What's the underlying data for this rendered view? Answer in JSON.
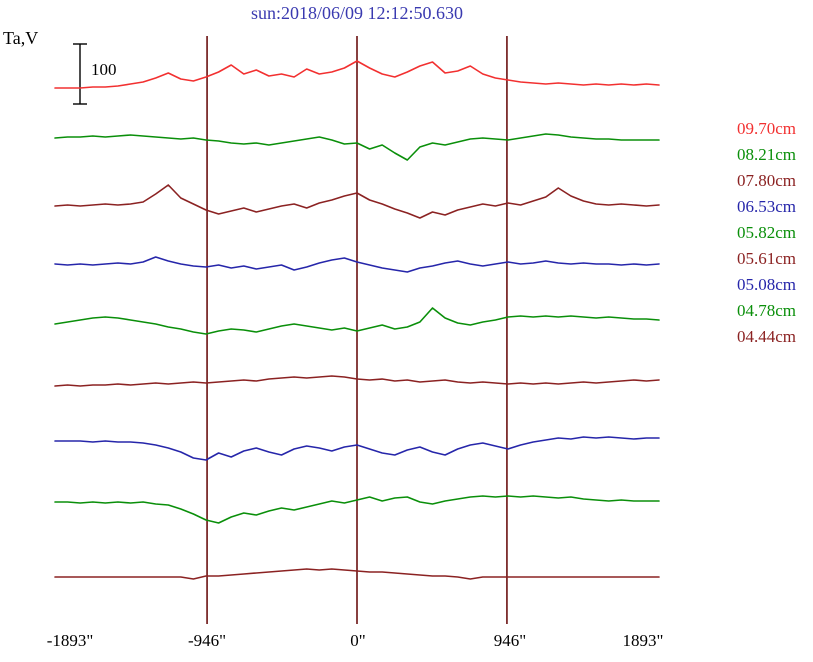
{
  "title": "sun:2018/06/09 12:12:50.630",
  "y_axis_label": "Ta,V",
  "scale_bar": {
    "label": "100",
    "value": 100
  },
  "x_ticks": [
    "-1893\"",
    "-946\"",
    "0\"",
    "946\"",
    "1893\""
  ],
  "chart_data": {
    "type": "line",
    "title": "sun:2018/06/09 12:12:50.630",
    "ylabel": "Ta,V",
    "x_unit": "arcsec",
    "x_range_arcsec": [
      -1893,
      1893
    ],
    "x_tick_values": [
      -1893,
      -946,
      0,
      946,
      1893
    ],
    "gridlines_arcsec": [
      -946,
      0,
      946
    ],
    "scale_bar_value": 100,
    "grid_color": "#7b2b2b",
    "series": [
      {
        "name": "09.70cm",
        "color": "#f23030",
        "baseline": 86,
        "offsets": [
          -2,
          -2,
          -2,
          -1,
          -1,
          0,
          2,
          4,
          8,
          13,
          7,
          5,
          9,
          14,
          21,
          12,
          16,
          10,
          12,
          9,
          17,
          12,
          14,
          18,
          25,
          18,
          12,
          9,
          14,
          20,
          24,
          13,
          15,
          20,
          12,
          8,
          6,
          4,
          3,
          2,
          3,
          2,
          1,
          2,
          1,
          2,
          1,
          2,
          1
        ]
      },
      {
        "name": "08.21cm",
        "color": "#0a8f0a",
        "baseline": 141,
        "offsets": [
          3,
          4,
          4,
          5,
          4,
          5,
          6,
          5,
          4,
          3,
          2,
          3,
          1,
          0,
          -2,
          -3,
          -2,
          -4,
          -2,
          0,
          2,
          4,
          1,
          -3,
          -2,
          -8,
          -4,
          -12,
          -19,
          -6,
          -2,
          -4,
          -1,
          2,
          3,
          2,
          1,
          3,
          5,
          7,
          6,
          4,
          3,
          2,
          2,
          1,
          1,
          1,
          1
        ]
      },
      {
        "name": "07.80cm",
        "color": "#8b2222",
        "baseline": 206,
        "offsets": [
          0,
          1,
          0,
          1,
          2,
          1,
          2,
          4,
          12,
          21,
          8,
          2,
          -4,
          -8,
          -5,
          -2,
          -6,
          -3,
          0,
          2,
          -2,
          3,
          6,
          10,
          13,
          6,
          2,
          -3,
          -7,
          -12,
          -6,
          -9,
          -4,
          -1,
          2,
          0,
          3,
          1,
          5,
          9,
          18,
          10,
          5,
          2,
          1,
          2,
          1,
          0,
          1
        ]
      },
      {
        "name": "06.53cm",
        "color": "#2626aa",
        "baseline": 265,
        "offsets": [
          1,
          0,
          1,
          0,
          1,
          2,
          1,
          3,
          8,
          4,
          1,
          -1,
          -2,
          0,
          -3,
          -1,
          -4,
          -2,
          0,
          -5,
          -2,
          2,
          5,
          7,
          3,
          0,
          -3,
          -5,
          -7,
          -3,
          -1,
          2,
          4,
          1,
          -1,
          1,
          3,
          1,
          2,
          4,
          2,
          1,
          2,
          1,
          1,
          0,
          1,
          0,
          1
        ]
      },
      {
        "name": "05.82cm",
        "color": "#0a8f0a",
        "baseline": 325,
        "offsets": [
          1,
          3,
          5,
          7,
          8,
          7,
          5,
          3,
          1,
          -2,
          -4,
          -7,
          -9,
          -6,
          -4,
          -5,
          -7,
          -4,
          -1,
          1,
          -1,
          -3,
          -5,
          -3,
          -6,
          -3,
          0,
          -4,
          -2,
          3,
          17,
          7,
          2,
          0,
          3,
          5,
          8,
          9,
          8,
          9,
          8,
          9,
          8,
          7,
          8,
          7,
          6,
          6,
          5
        ]
      },
      {
        "name": "05.61cm",
        "color": "#8b2222",
        "baseline": 385,
        "offsets": [
          -1,
          0,
          -1,
          0,
          0,
          1,
          0,
          1,
          2,
          1,
          2,
          3,
          2,
          3,
          4,
          5,
          4,
          6,
          7,
          8,
          7,
          8,
          9,
          8,
          6,
          5,
          6,
          4,
          5,
          3,
          4,
          5,
          3,
          2,
          3,
          2,
          1,
          2,
          1,
          2,
          1,
          2,
          3,
          2,
          3,
          4,
          5,
          4,
          5
        ]
      },
      {
        "name": "05.08cm",
        "color": "#2626aa",
        "baseline": 443,
        "offsets": [
          2,
          2,
          2,
          1,
          2,
          1,
          1,
          0,
          -2,
          -5,
          -9,
          -15,
          -17,
          -10,
          -14,
          -8,
          -5,
          -9,
          -12,
          -6,
          -3,
          -5,
          -8,
          -4,
          -2,
          -6,
          -10,
          -12,
          -7,
          -4,
          -9,
          -12,
          -6,
          -2,
          0,
          -3,
          -6,
          -2,
          1,
          3,
          5,
          4,
          6,
          5,
          6,
          5,
          4,
          5,
          5
        ]
      },
      {
        "name": "04.78cm",
        "color": "#0a8f0a",
        "baseline": 505,
        "offsets": [
          3,
          3,
          2,
          3,
          2,
          3,
          2,
          3,
          1,
          0,
          -4,
          -9,
          -15,
          -18,
          -12,
          -8,
          -10,
          -6,
          -3,
          -5,
          -2,
          1,
          4,
          2,
          5,
          8,
          4,
          7,
          8,
          3,
          1,
          4,
          6,
          8,
          9,
          8,
          9,
          8,
          9,
          8,
          7,
          8,
          6,
          5,
          4,
          5,
          4,
          4,
          4
        ]
      },
      {
        "name": "04.44cm",
        "color": "#8b2222",
        "baseline": 577,
        "offsets": [
          0,
          0,
          0,
          0,
          0,
          0,
          0,
          0,
          0,
          0,
          0,
          -2,
          1,
          1,
          2,
          3,
          4,
          5,
          6,
          7,
          8,
          7,
          8,
          7,
          6,
          5,
          5,
          4,
          3,
          2,
          1,
          1,
          0,
          -2,
          0,
          0,
          0,
          0,
          0,
          0,
          0,
          0,
          0,
          0,
          0,
          0,
          0,
          0,
          0
        ]
      }
    ]
  }
}
